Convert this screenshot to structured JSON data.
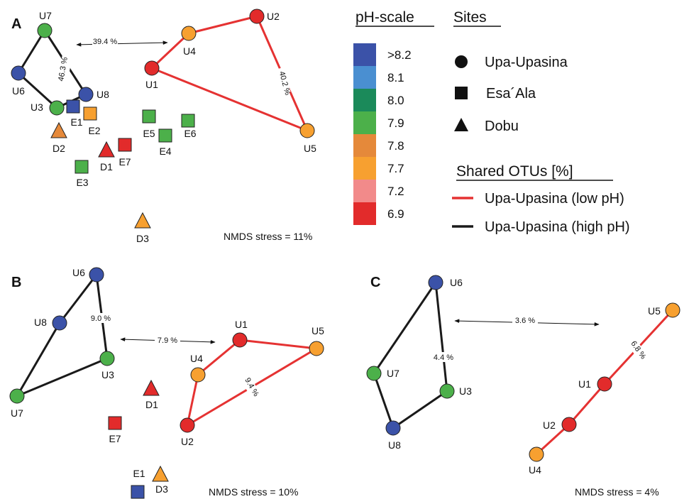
{
  "colors": {
    "ph_gt_8_2": "#3b52a8",
    "ph_8_1": "#4a8fd1",
    "ph_8_0": "#1b8a5a",
    "ph_7_9": "#4cb04a",
    "ph_7_8": "#e5893a",
    "ph_7_7": "#f7a030",
    "ph_7_2": "#f28a8a",
    "ph_6_9": "#e22b2b",
    "line_low": "#e53232",
    "line_high": "#1a1a1a"
  },
  "legend": {
    "ph_title": "pH-scale",
    "ph_levels": [
      {
        "label": ">8.2",
        "color": "#3b52a8"
      },
      {
        "label": "8.1",
        "color": "#4a8fd1"
      },
      {
        "label": "8.0",
        "color": "#1b8a5a"
      },
      {
        "label": "7.9",
        "color": "#4cb04a"
      },
      {
        "label": "7.8",
        "color": "#e5893a"
      },
      {
        "label": "7.7",
        "color": "#f7a030"
      },
      {
        "label": "7.2",
        "color": "#f28a8a"
      },
      {
        "label": "6.9",
        "color": "#e22b2b"
      }
    ],
    "sites_title": "Sites",
    "sites": [
      {
        "label": "Upa-Upasina",
        "shape": "circle"
      },
      {
        "label": "Esa´Ala",
        "shape": "square"
      },
      {
        "label": "Dobu",
        "shape": "triangle"
      }
    ],
    "shared_title": "Shared OTUs [%]",
    "shared": [
      {
        "label": "Upa-Upasina (low pH)",
        "line": "low"
      },
      {
        "label": "Upa-Upasina (high pH)",
        "line": "high"
      }
    ]
  },
  "panels": [
    {
      "letter": "A",
      "stress": "NMDS stress = 11%",
      "percents": [
        {
          "text": "39.4 %",
          "rot": 0
        },
        {
          "text": "46.3 %",
          "rot": -80
        },
        {
          "text": "40.2 %",
          "rot": 75
        }
      ],
      "points": [
        {
          "label": "U7",
          "ph": "7.9"
        },
        {
          "label": "U6",
          "ph": ">8.2"
        },
        {
          "label": "U8",
          "ph": ">8.2"
        },
        {
          "label": "U3",
          "ph": "7.9"
        },
        {
          "label": "E1",
          "ph": ">8.2"
        },
        {
          "label": "E2",
          "ph": "7.7"
        },
        {
          "label": "D2",
          "ph": "7.8"
        },
        {
          "label": "D1",
          "ph": "6.9"
        },
        {
          "label": "E7",
          "ph": "6.9"
        },
        {
          "label": "E3",
          "ph": "7.9"
        },
        {
          "label": "E5",
          "ph": "7.9"
        },
        {
          "label": "E4",
          "ph": "7.9"
        },
        {
          "label": "E6",
          "ph": "7.9"
        },
        {
          "label": "D3",
          "ph": "7.7"
        },
        {
          "label": "U4",
          "ph": "7.7"
        },
        {
          "label": "U2",
          "ph": "6.9"
        },
        {
          "label": "U1",
          "ph": "6.9"
        },
        {
          "label": "U5",
          "ph": "7.7"
        }
      ]
    },
    {
      "letter": "B",
      "stress": "NMDS stress = 10%",
      "percents": [
        {
          "text": "9.0 %",
          "rot": 0
        },
        {
          "text": "7.9 %",
          "rot": 0
        },
        {
          "text": "9.4 %",
          "rot": 60
        }
      ],
      "points": [
        {
          "label": "U6",
          "ph": ">8.2"
        },
        {
          "label": "U8",
          "ph": ">8.2"
        },
        {
          "label": "U3",
          "ph": "7.9"
        },
        {
          "label": "U7",
          "ph": "7.9"
        },
        {
          "label": "U1",
          "ph": "6.9"
        },
        {
          "label": "U5",
          "ph": "7.7"
        },
        {
          "label": "U4",
          "ph": "7.7"
        },
        {
          "label": "U2",
          "ph": "6.9"
        },
        {
          "label": "D1",
          "ph": "6.9"
        },
        {
          "label": "E7",
          "ph": "6.9"
        },
        {
          "label": "E1",
          "ph": ">8.2"
        },
        {
          "label": "D3",
          "ph": "7.7"
        }
      ]
    },
    {
      "letter": "C",
      "stress": "NMDS stress = 4%",
      "percents": [
        {
          "text": "3.6 %",
          "rot": 0
        },
        {
          "text": "4.4 %",
          "rot": 0
        },
        {
          "text": "6.8 %",
          "rot": 55
        }
      ],
      "points": [
        {
          "label": "U6",
          "ph": ">8.2"
        },
        {
          "label": "U7",
          "ph": "7.9"
        },
        {
          "label": "U3",
          "ph": "7.9"
        },
        {
          "label": "U8",
          "ph": ">8.2"
        },
        {
          "label": "U5",
          "ph": "7.7"
        },
        {
          "label": "U1",
          "ph": "6.9"
        },
        {
          "label": "U2",
          "ph": "6.9"
        },
        {
          "label": "U4",
          "ph": "7.7"
        }
      ]
    }
  ]
}
